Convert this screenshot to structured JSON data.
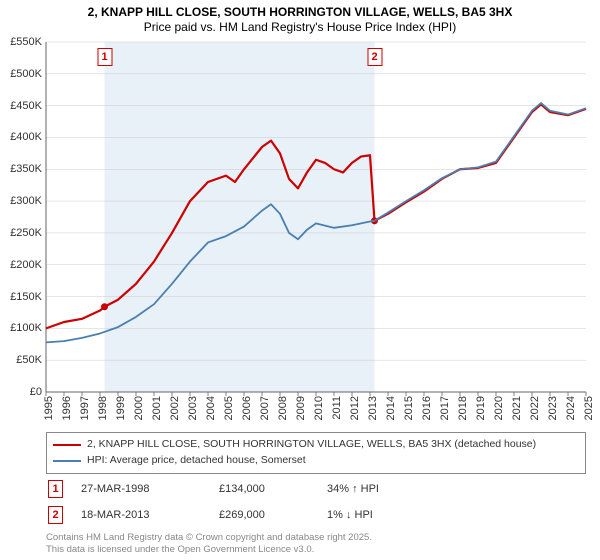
{
  "title_line1": "2, KNAPP HILL CLOSE, SOUTH HORRINGTON VILLAGE, WELLS, BA5 3HX",
  "title_line2": "Price paid vs. HM Land Registry's House Price Index (HPI)",
  "chart": {
    "type": "line",
    "background_color": "#ffffff",
    "plot_band_color": "#e8f0f8",
    "axis_color": "#666666",
    "grid_color": "#cccccc",
    "x": {
      "min": 1995,
      "max": 2025,
      "ticks": [
        1995,
        1996,
        1997,
        1998,
        1999,
        2000,
        2001,
        2002,
        2003,
        2004,
        2005,
        2006,
        2007,
        2008,
        2009,
        2010,
        2011,
        2012,
        2013,
        2014,
        2015,
        2016,
        2017,
        2018,
        2019,
        2020,
        2021,
        2022,
        2023,
        2024,
        2025
      ],
      "label_fontsize": 11,
      "label_rotation_deg": -90
    },
    "y": {
      "min": 0,
      "max": 550000,
      "ticks": [
        0,
        50000,
        100000,
        150000,
        200000,
        250000,
        300000,
        350000,
        400000,
        450000,
        500000,
        550000
      ],
      "tick_labels": [
        "£0",
        "£50K",
        "£100K",
        "£150K",
        "£200K",
        "£250K",
        "£300K",
        "£350K",
        "£400K",
        "£450K",
        "£500K",
        "£550K"
      ],
      "label_fontsize": 11
    },
    "plot_band": {
      "from": 1998.25,
      "to": 2013.25
    },
    "series": [
      {
        "name": "price_paid",
        "color": "#cc0000",
        "line_width": 2.2,
        "data": [
          [
            1995.0,
            100000
          ],
          [
            1996.0,
            110000
          ],
          [
            1997.0,
            115000
          ],
          [
            1998.0,
            128000
          ],
          [
            1998.25,
            134000
          ],
          [
            1999.0,
            145000
          ],
          [
            2000.0,
            170000
          ],
          [
            2001.0,
            205000
          ],
          [
            2002.0,
            250000
          ],
          [
            2003.0,
            300000
          ],
          [
            2004.0,
            330000
          ],
          [
            2005.0,
            340000
          ],
          [
            2005.5,
            330000
          ],
          [
            2006.0,
            350000
          ],
          [
            2007.0,
            385000
          ],
          [
            2007.5,
            395000
          ],
          [
            2008.0,
            375000
          ],
          [
            2008.5,
            335000
          ],
          [
            2009.0,
            320000
          ],
          [
            2009.5,
            345000
          ],
          [
            2010.0,
            365000
          ],
          [
            2010.5,
            360000
          ],
          [
            2011.0,
            350000
          ],
          [
            2011.5,
            345000
          ],
          [
            2012.0,
            360000
          ],
          [
            2012.5,
            370000
          ],
          [
            2013.0,
            372000
          ],
          [
            2013.25,
            269000
          ],
          [
            2014.0,
            280000
          ],
          [
            2015.0,
            298000
          ],
          [
            2016.0,
            315000
          ],
          [
            2017.0,
            335000
          ],
          [
            2018.0,
            350000
          ],
          [
            2019.0,
            352000
          ],
          [
            2020.0,
            360000
          ],
          [
            2021.0,
            400000
          ],
          [
            2022.0,
            440000
          ],
          [
            2022.5,
            452000
          ],
          [
            2023.0,
            440000
          ],
          [
            2024.0,
            435000
          ],
          [
            2025.0,
            445000
          ]
        ],
        "markers": [
          {
            "x": 1998.25,
            "y": 134000
          },
          {
            "x": 2013.25,
            "y": 269000
          }
        ]
      },
      {
        "name": "hpi",
        "color": "#4a7fb0",
        "line_width": 1.8,
        "data": [
          [
            1995.0,
            78000
          ],
          [
            1996.0,
            80000
          ],
          [
            1997.0,
            85000
          ],
          [
            1998.0,
            92000
          ],
          [
            1999.0,
            102000
          ],
          [
            2000.0,
            118000
          ],
          [
            2001.0,
            138000
          ],
          [
            2002.0,
            170000
          ],
          [
            2003.0,
            205000
          ],
          [
            2004.0,
            235000
          ],
          [
            2005.0,
            245000
          ],
          [
            2006.0,
            260000
          ],
          [
            2007.0,
            285000
          ],
          [
            2007.5,
            295000
          ],
          [
            2008.0,
            280000
          ],
          [
            2008.5,
            250000
          ],
          [
            2009.0,
            240000
          ],
          [
            2009.5,
            255000
          ],
          [
            2010.0,
            265000
          ],
          [
            2011.0,
            258000
          ],
          [
            2012.0,
            262000
          ],
          [
            2013.0,
            268000
          ],
          [
            2013.25,
            269000
          ],
          [
            2014.0,
            282000
          ],
          [
            2015.0,
            300000
          ],
          [
            2016.0,
            317000
          ],
          [
            2017.0,
            336000
          ],
          [
            2018.0,
            350000
          ],
          [
            2019.0,
            353000
          ],
          [
            2020.0,
            362000
          ],
          [
            2021.0,
            402000
          ],
          [
            2022.0,
            442000
          ],
          [
            2022.5,
            454000
          ],
          [
            2023.0,
            442000
          ],
          [
            2024.0,
            436000
          ],
          [
            2025.0,
            446000
          ]
        ]
      }
    ],
    "event_markers": [
      {
        "label": "1",
        "x": 1998.25
      },
      {
        "label": "2",
        "x": 2013.25
      }
    ]
  },
  "legend": {
    "items": [
      {
        "color": "#cc0000",
        "label": "2, KNAPP HILL CLOSE, SOUTH HORRINGTON VILLAGE, WELLS, BA5 3HX (detached house)"
      },
      {
        "color": "#4a7fb0",
        "label": "HPI: Average price, detached house, Somerset"
      }
    ]
  },
  "events_table": [
    {
      "num": "1",
      "date": "27-MAR-1998",
      "price": "£134,000",
      "delta": "34% ↑ HPI"
    },
    {
      "num": "2",
      "date": "18-MAR-2013",
      "price": "£269,000",
      "delta": "1% ↓ HPI"
    }
  ],
  "footer_line1": "Contains HM Land Registry data © Crown copyright and database right 2025.",
  "footer_line2": "This data is licensed under the Open Government Licence v3.0."
}
